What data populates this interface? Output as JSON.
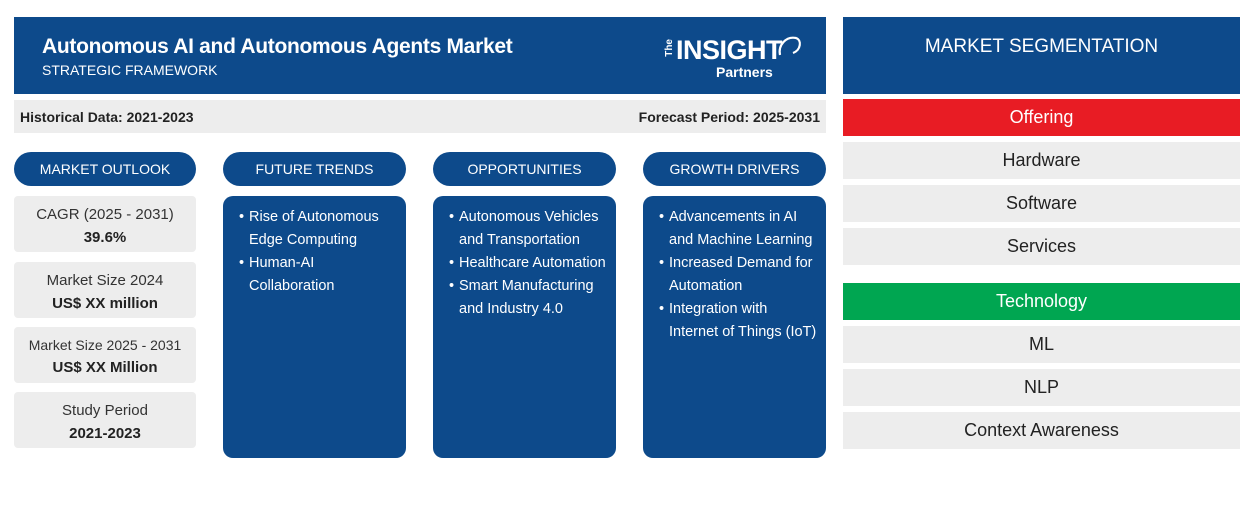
{
  "header": {
    "title": "Autonomous AI and Autonomous Agents Market",
    "subtitle": "STRATEGIC FRAMEWORK",
    "logo": {
      "the": "The",
      "insight": "INSIGHT",
      "partners": "Partners"
    }
  },
  "periods": {
    "historical": "Historical Data: 2021-2023",
    "forecast": "Forecast Period: 2025-2031"
  },
  "columns": {
    "outlook": "MARKET OUTLOOK",
    "trends": "FUTURE TRENDS",
    "opportunities": "OPPORTUNITIES",
    "drivers": "GROWTH DRIVERS"
  },
  "outlook": [
    {
      "label": "CAGR (2025 - 2031)",
      "value": "39.6%"
    },
    {
      "label": "Market Size 2024",
      "value": "US$ XX million"
    },
    {
      "label": "Market Size 2025 - 2031",
      "value": "US$ XX Million"
    },
    {
      "label": "Study Period",
      "value": "2021-2023"
    }
  ],
  "trends": [
    "Rise of Autonomous Edge Computing",
    "Human-AI Collaboration"
  ],
  "opportunities": [
    "Autonomous Vehicles and Transportation",
    "Healthcare Automation",
    "Smart Manufacturing and Industry 4.0"
  ],
  "drivers": [
    "Advancements in AI and Machine Learning",
    "Increased Demand for Automation",
    "Integration with Internet of Things (IoT)"
  ],
  "segmentation": {
    "title": "MARKET SEGMENTATION",
    "offering": {
      "label": "Offering",
      "color": "#e81c24",
      "items": [
        "Hardware",
        "Software",
        "Services"
      ]
    },
    "technology": {
      "label": "Technology",
      "color": "#00a651",
      "items": [
        "ML",
        "NLP",
        "Context Awareness"
      ]
    }
  },
  "colors": {
    "brand": "#0d4a8b",
    "panel_bg": "#ededed"
  }
}
